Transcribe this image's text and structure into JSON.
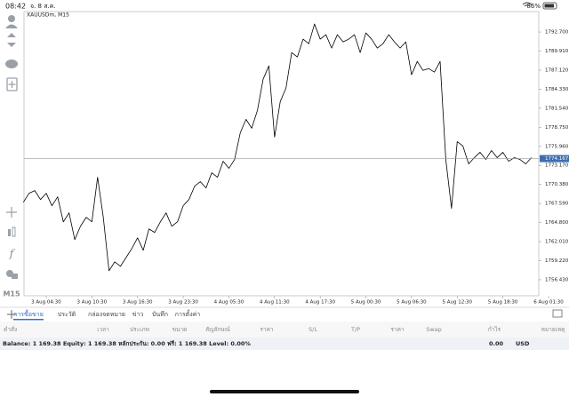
{
  "status_bar": {
    "time": "08:42",
    "date": "จ. 8 ส.ค.",
    "battery": "86%"
  },
  "chart_data": {
    "type": "line",
    "title": "XAUUSDm, M15",
    "color": "#000000",
    "categories": [
      null,
      null,
      null,
      null,
      "3 Aug 04:30",
      null,
      null,
      null,
      null,
      null,
      null,
      null,
      "3 Aug 10:30",
      null,
      null,
      null,
      null,
      null,
      null,
      null,
      "3 Aug 16:30",
      null,
      null,
      null,
      null,
      null,
      null,
      null,
      "3 Aug 23:30",
      null,
      null,
      null,
      null,
      null,
      null,
      null,
      "4 Aug 05:30",
      null,
      null,
      null,
      null,
      null,
      null,
      null,
      "4 Aug 11:30",
      null,
      null,
      null,
      null,
      null,
      null,
      null,
      "4 Aug 17:30",
      null,
      null,
      null,
      null,
      null,
      null,
      null,
      "5 Aug 00:30",
      null,
      null,
      null,
      null,
      null,
      null,
      null,
      "5 Aug 06:30",
      null,
      null,
      null,
      null,
      null,
      null,
      null,
      "5 Aug 12:30",
      null,
      null,
      null,
      null,
      null,
      null,
      null,
      "5 Aug 18:30",
      null,
      null,
      null,
      null,
      null,
      null,
      null,
      "6 Aug 01:30"
    ],
    "values": [
      1767.78,
      1769.09,
      1769.48,
      1768.17,
      1769.09,
      1767.26,
      1768.56,
      1764.91,
      1766.22,
      1762.3,
      1764.26,
      1765.56,
      1764.91,
      1771.43,
      1765.56,
      1757.74,
      1759.04,
      1758.39,
      1759.69,
      1761.0,
      1762.56,
      1760.74,
      1763.87,
      1763.35,
      1764.91,
      1766.22,
      1764.26,
      1764.91,
      1767.26,
      1768.17,
      1770.13,
      1770.78,
      1769.87,
      1772.09,
      1771.43,
      1773.78,
      1772.74,
      1774.04,
      1777.96,
      1779.91,
      1778.61,
      1781.22,
      1785.79,
      1787.74,
      1777.31,
      1782.52,
      1784.48,
      1789.7,
      1789.05,
      1791.66,
      1791.0,
      1793.87,
      1791.66,
      1792.31,
      1790.35,
      1792.31,
      1791.26,
      1791.66,
      1792.31,
      1789.7,
      1792.57,
      1791.66,
      1790.35,
      1791.0,
      1792.31,
      1791.26,
      1790.35,
      1791.26,
      1786.44,
      1788.39,
      1787.09,
      1787.35,
      1786.83,
      1788.39,
      1774.04,
      1766.87,
      1776.65,
      1776.0,
      1773.39,
      1774.3,
      1775.09,
      1774.04,
      1775.35,
      1774.3,
      1775.09,
      1773.78,
      1774.3,
      1774.04,
      1773.39,
      1774.3,
      null,
      null,
      null
    ],
    "ylim": [
      1754.08,
      1795.7
    ],
    "yticks": [
      {
        "value": 1792.7,
        "label": "1792.700"
      },
      {
        "value": 1789.91,
        "label": "1789.910"
      },
      {
        "value": 1787.12,
        "label": "1787.120"
      },
      {
        "value": 1784.33,
        "label": "1784.330"
      },
      {
        "value": 1781.54,
        "label": "1781.540"
      },
      {
        "value": 1778.75,
        "label": "1778.750"
      },
      {
        "value": 1775.96,
        "label": "1775.960"
      },
      {
        "value": 1773.17,
        "label": "1773.170"
      },
      {
        "value": 1770.38,
        "label": "1770.380"
      },
      {
        "value": 1767.59,
        "label": "1767.590"
      },
      {
        "value": 1764.8,
        "label": "1764.800"
      },
      {
        "value": 1762.01,
        "label": "1762.010"
      },
      {
        "value": 1759.22,
        "label": "1759.220"
      },
      {
        "value": 1756.43,
        "label": "1756.430"
      }
    ],
    "current_price": 1774.167,
    "current_price_color": "#3d6fb0",
    "grid": false
  },
  "side_toolbar": {
    "timeframe": "M15"
  },
  "tabs": [
    "การซื้อขาย",
    "ประวัติ",
    "กล่องจดหมาย",
    "ข่าว",
    "บันทึก",
    "การตั้งค่า"
  ],
  "columns": [
    "คำสั่ง",
    "เวลา",
    "ประเภท",
    "ขนาด",
    "สัญลักษณ์",
    "ราคา",
    "S/L",
    "T/P",
    "ราคา",
    "Swap",
    "กำไร",
    "หมายเหตุ"
  ],
  "balance": {
    "summary": "Balance: 1 169.38 Equity: 1 169.38 หลักประกัน: 0.00 ฟรี: 1 169.38 Level: 0.00%",
    "profit": "0.00",
    "currency": "USD"
  }
}
